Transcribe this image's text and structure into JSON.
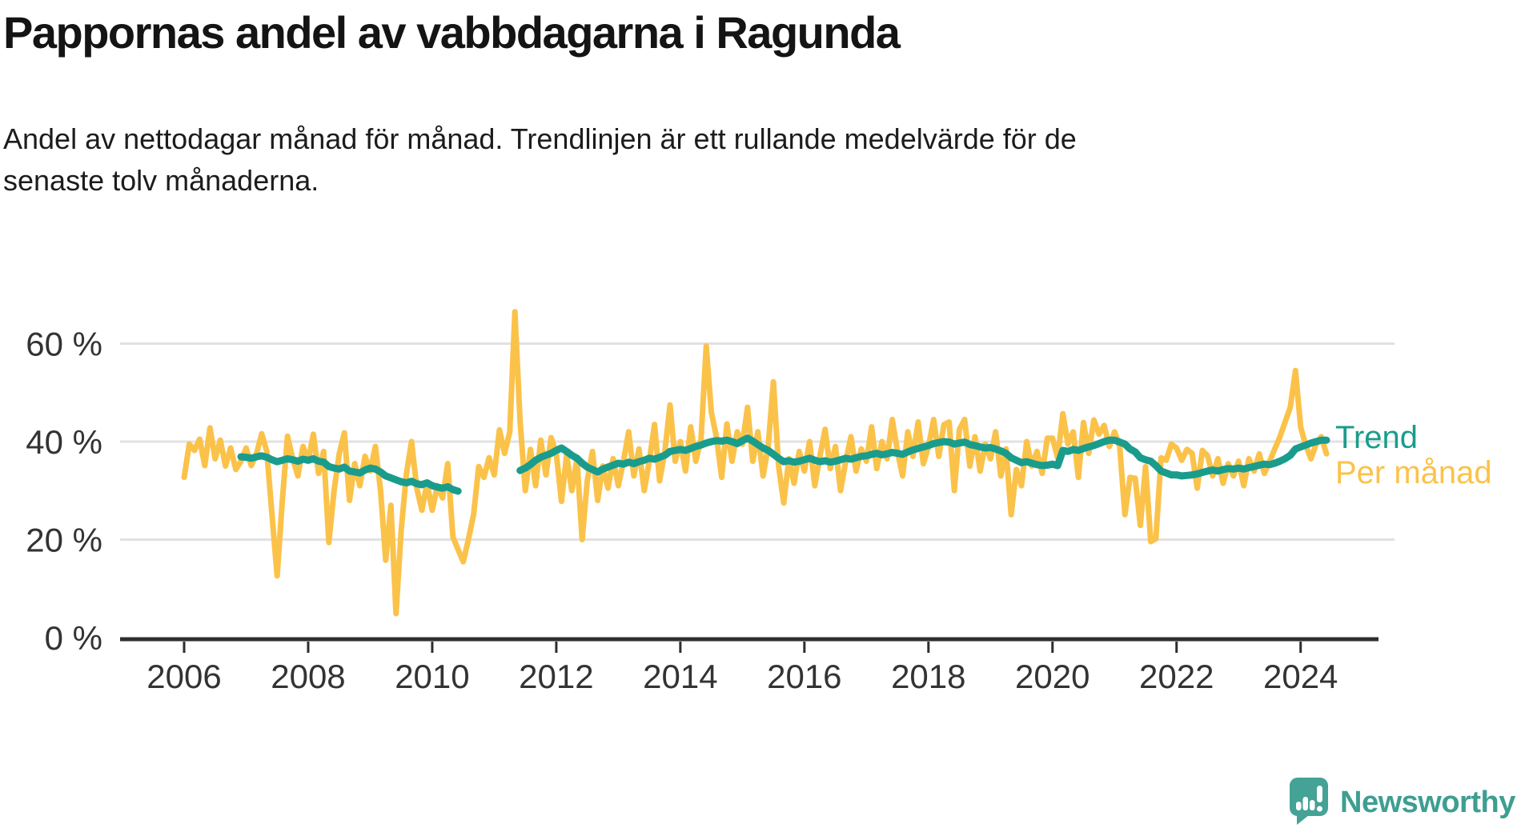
{
  "header": {
    "title": "Pappornas andel av vabbdagarna i Ragunda",
    "subtitle_line1": "Andel av nettodagar månad för månad. Trendlinjen är ett rullande medelvärde för de",
    "subtitle_line2": "senaste tolv månaderna."
  },
  "footer": {
    "brand": "Newsworthy",
    "logo_color": "#44A296",
    "text_color": "#3D9E91"
  },
  "chart_data": {
    "type": "line",
    "title": "Pappornas andel av vabbdagarna i Ragunda",
    "subtitle": "Andel av nettodagar månad för månad. Trendlinjen är ett rullande medelvärde för de senaste tolv månaderna.",
    "x_unit": "month",
    "x_start": "2006-01",
    "x_end": "2024-06",
    "ylim": [
      0,
      70
    ],
    "grid": "horizontal",
    "axis_color": "#2E2E2E",
    "grid_color": "#E1E1E1",
    "tick_label_color": "#333333",
    "legend_position": "right-of-line-end",
    "x_ticks": [
      {
        "year": 2006,
        "label": "2006"
      },
      {
        "year": 2008,
        "label": "2008"
      },
      {
        "year": 2010,
        "label": "2010"
      },
      {
        "year": 2012,
        "label": "2012"
      },
      {
        "year": 2014,
        "label": "2014"
      },
      {
        "year": 2016,
        "label": "2016"
      },
      {
        "year": 2018,
        "label": "2018"
      },
      {
        "year": 2020,
        "label": "2020"
      },
      {
        "year": 2022,
        "label": "2022"
      },
      {
        "year": 2024,
        "label": "2024"
      }
    ],
    "y_ticks": [
      {
        "value": 0,
        "label": "0 %"
      },
      {
        "value": 20,
        "label": "20 %"
      },
      {
        "value": 40,
        "label": "40 %"
      },
      {
        "value": 60,
        "label": "60 %"
      }
    ],
    "series": [
      {
        "name": "Per månad",
        "color": "#FBC24A",
        "stroke_width": 7,
        "values": [
          32.7,
          39.5,
          38.2,
          40.5,
          35.1,
          42.8,
          36.5,
          40.3,
          35.0,
          38.7,
          34.3,
          36.0,
          38.7,
          35.1,
          37.5,
          41.6,
          38.0,
          25.0,
          12.6,
          28.0,
          41.1,
          36.5,
          33.0,
          39.0,
          36.0,
          41.5,
          33.5,
          38.0,
          19.4,
          30.0,
          37.5,
          41.8,
          28.0,
          35.5,
          31.0,
          37.0,
          34.0,
          39.0,
          30.0,
          15.8,
          27.0,
          4.9,
          22.0,
          33.5,
          40.0,
          30.5,
          26.0,
          31.5,
          26.0,
          31.0,
          28.5,
          35.5,
          20.5,
          18.0,
          15.5,
          20.0,
          25.1,
          34.9,
          32.7,
          36.7,
          33.2,
          42.4,
          37.6,
          42.0,
          66.5,
          44.1,
          30.0,
          38.4,
          31.0,
          40.3,
          33.2,
          40.8,
          37.6,
          27.8,
          37.3,
          30.0,
          36.5,
          20.0,
          32.0,
          38.0,
          28.0,
          35.0,
          30.5,
          36.5,
          31.0,
          36.0,
          42.0,
          33.0,
          38.5,
          30.0,
          36.0,
          43.5,
          32.0,
          38.0,
          47.5,
          36.0,
          40.0,
          34.0,
          43.0,
          36.0,
          40.5,
          59.5,
          46.0,
          40.8,
          32.7,
          43.6,
          36.0,
          42.0,
          39.5,
          47.0,
          36.0,
          42.0,
          33.0,
          39.0,
          52.2,
          35.0,
          27.5,
          36.5,
          31.5,
          38.0,
          34.0,
          40.0,
          31.0,
          37.0,
          42.5,
          34.5,
          39.0,
          30.0,
          36.0,
          41.0,
          34.0,
          38.5,
          36.0,
          43.0,
          34.5,
          40.0,
          36.5,
          44.5,
          38.0,
          33.0,
          42.0,
          37.0,
          44.0,
          35.5,
          39.0,
          44.5,
          37.0,
          43.5,
          44.0,
          30.0,
          42.5,
          44.5,
          35.0,
          41.0,
          34.0,
          39.5,
          36.5,
          42.0,
          33.0,
          38.5,
          25.1,
          34.3,
          31.0,
          40.0,
          35.0,
          38.0,
          33.5,
          40.7,
          40.7,
          36.7,
          45.7,
          39.5,
          42.0,
          32.7,
          43.9,
          37.6,
          44.4,
          41.5,
          43.3,
          39.0,
          42.0,
          39.0,
          25.1,
          32.7,
          32.5,
          22.9,
          34.9,
          19.6,
          20.2,
          36.7,
          36.2,
          39.5,
          38.7,
          36.2,
          38.4,
          37.6,
          30.5,
          38.2,
          37.1,
          33.0,
          36.5,
          31.5,
          35.5,
          33.0,
          36.0,
          31.0,
          36.5,
          34.0,
          37.5,
          33.5,
          36.0,
          38.5,
          41.0,
          44.0,
          47.0,
          54.5,
          43.0,
          39.2,
          36.5,
          39.5,
          41.0,
          37.5
        ]
      },
      {
        "name": "Trend",
        "color": "#1A9C8C",
        "stroke_width": 9,
        "values": [
          null,
          null,
          null,
          null,
          null,
          null,
          null,
          null,
          null,
          null,
          null,
          36.9,
          36.8,
          36.6,
          36.9,
          37.1,
          36.8,
          36.3,
          35.9,
          36.2,
          36.5,
          36.3,
          36.0,
          36.4,
          36.2,
          36.5,
          36.0,
          35.8,
          34.9,
          34.6,
          34.4,
          34.8,
          34.0,
          33.8,
          33.6,
          34.2,
          34.6,
          34.4,
          33.8,
          33.0,
          32.6,
          32.2,
          31.8,
          31.6,
          31.9,
          31.4,
          31.2,
          31.6,
          31.0,
          30.7,
          30.5,
          30.8,
          30.2,
          29.9,
          null,
          null,
          null,
          null,
          null,
          null,
          null,
          null,
          null,
          null,
          null,
          34.1,
          34.6,
          35.3,
          36.2,
          36.8,
          37.2,
          37.6,
          38.2,
          38.7,
          38.0,
          37.2,
          36.6,
          35.6,
          34.8,
          34.3,
          33.8,
          34.4,
          34.8,
          35.2,
          35.6,
          35.4,
          35.8,
          35.5,
          35.9,
          36.2,
          36.6,
          36.4,
          36.8,
          37.2,
          38.0,
          38.2,
          38.4,
          38.2,
          38.6,
          39.0,
          39.3,
          39.7,
          40.0,
          40.2,
          40.1,
          40.3,
          40.0,
          39.6,
          40.2,
          40.7,
          40.1,
          39.4,
          38.7,
          38.2,
          37.4,
          36.6,
          35.9,
          36.1,
          35.8,
          36.0,
          36.3,
          36.6,
          36.2,
          35.9,
          36.1,
          35.8,
          36.0,
          36.3,
          36.6,
          36.4,
          36.7,
          37.0,
          37.1,
          37.4,
          37.6,
          37.3,
          37.5,
          37.8,
          37.6,
          37.4,
          37.9,
          38.3,
          38.6,
          38.9,
          39.2,
          39.6,
          39.8,
          40.0,
          39.9,
          39.5,
          39.7,
          39.9,
          39.4,
          39.2,
          38.9,
          38.7,
          38.8,
          38.5,
          38.1,
          37.6,
          36.7,
          36.2,
          35.7,
          35.9,
          35.6,
          35.3,
          35.1,
          35.2,
          35.4,
          35.1,
          38.2,
          38.0,
          38.4,
          38.2,
          38.6,
          38.9,
          39.2,
          39.6,
          40.0,
          40.3,
          40.3,
          39.9,
          39.5,
          38.5,
          37.9,
          36.7,
          36.3,
          36.0,
          35.1,
          34.0,
          33.6,
          33.2,
          33.2,
          33.0,
          33.1,
          33.2,
          33.4,
          33.7,
          34.0,
          34.2,
          34.0,
          34.3,
          34.5,
          34.4,
          34.6,
          34.4,
          34.7,
          34.9,
          35.2,
          35.4,
          35.3,
          35.6,
          36.0,
          36.5,
          37.2,
          38.5,
          38.9,
          39.3,
          39.7,
          40.0,
          40.3,
          40.3
        ]
      }
    ]
  }
}
